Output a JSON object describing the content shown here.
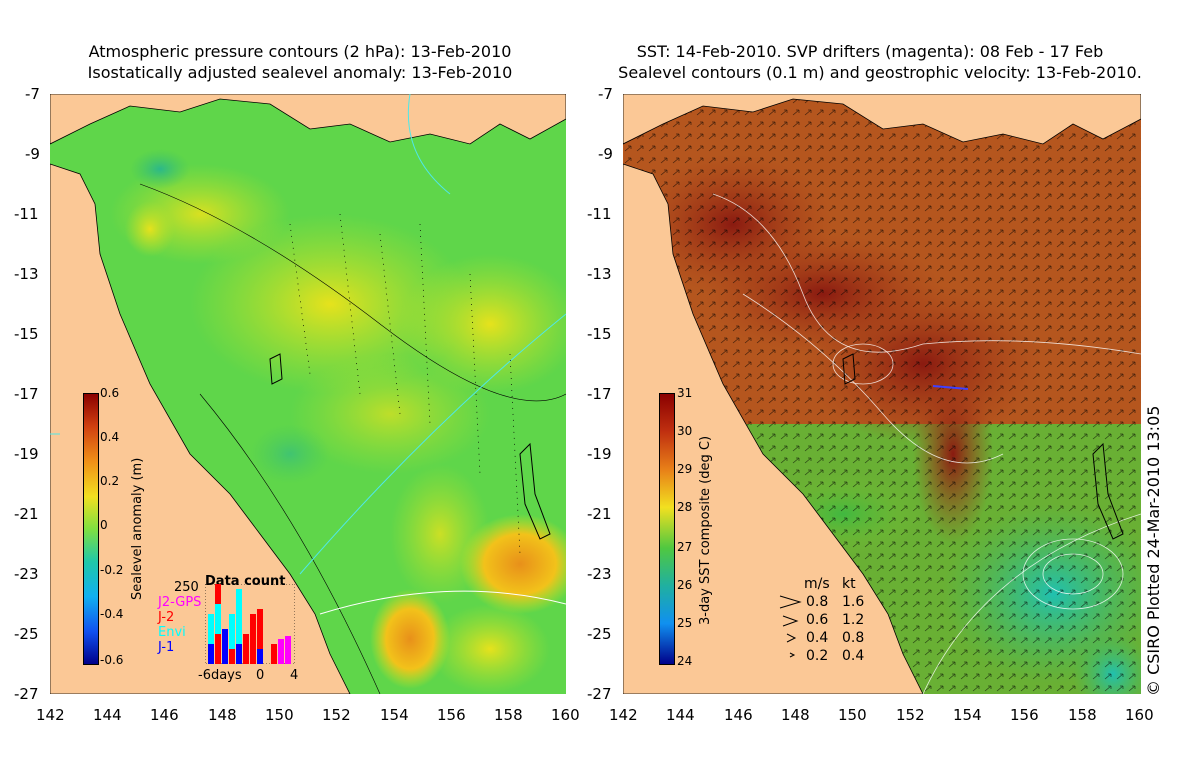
{
  "left_panel": {
    "title_line1": "Atmospheric pressure contours (2 hPa): 13-Feb-2010",
    "title_line2": "Isostatically adjusted sealevel anomaly: 13-Feb-2010",
    "colorbar": {
      "title": "Sealevel anomaly (m)",
      "ticks": [
        "0.6",
        "0.4",
        "0.2",
        "0",
        "-0.2",
        "-0.4",
        "-0.6"
      ]
    },
    "data_count": {
      "title": "Data count",
      "max_label": "250",
      "missions": [
        {
          "name": "J2-GPS",
          "color": "#ff00ff"
        },
        {
          "name": "J-2",
          "color": "#ff0000"
        },
        {
          "name": "Envi",
          "color": "#00ffff"
        },
        {
          "name": "J-1",
          "color": "#0000ff"
        }
      ],
      "x_labels": [
        "-6days",
        "0",
        "4"
      ]
    }
  },
  "right_panel": {
    "title_line1": "SST: 14-Feb-2010. SVP drifters (magenta): 08 Feb - 17 Feb",
    "title_line2": "Sealevel contours (0.1 m) and geostrophic velocity: 13-Feb-2010.",
    "colorbar": {
      "title": "3-day SST composite (deg C)",
      "ticks": [
        "31",
        "30",
        "29",
        "28",
        "27",
        "26",
        "25",
        "24"
      ]
    },
    "velocity_legend": {
      "header_ms": "m/s",
      "header_kt": "kt",
      "rows": [
        {
          "ms": "0.8",
          "kt": "1.6"
        },
        {
          "ms": "0.6",
          "kt": "1.2"
        },
        {
          "ms": "0.4",
          "kt": "0.8"
        },
        {
          "ms": "0.2",
          "kt": "0.4"
        }
      ]
    }
  },
  "axes": {
    "lat_labels": [
      "-7",
      "-9",
      "-11",
      "-13",
      "-15",
      "-17",
      "-19",
      "-21",
      "-23",
      "-25",
      "-27"
    ],
    "lon_labels": [
      "142",
      "144",
      "146",
      "148",
      "150",
      "152",
      "154",
      "156",
      "158",
      "160"
    ]
  },
  "credit": "© CSIRO Plotted 24-Mar-2010 13:05",
  "colors": {
    "land": "#fbc896",
    "sla_background": "#5fd64a",
    "sst_background": "#b5561e"
  }
}
